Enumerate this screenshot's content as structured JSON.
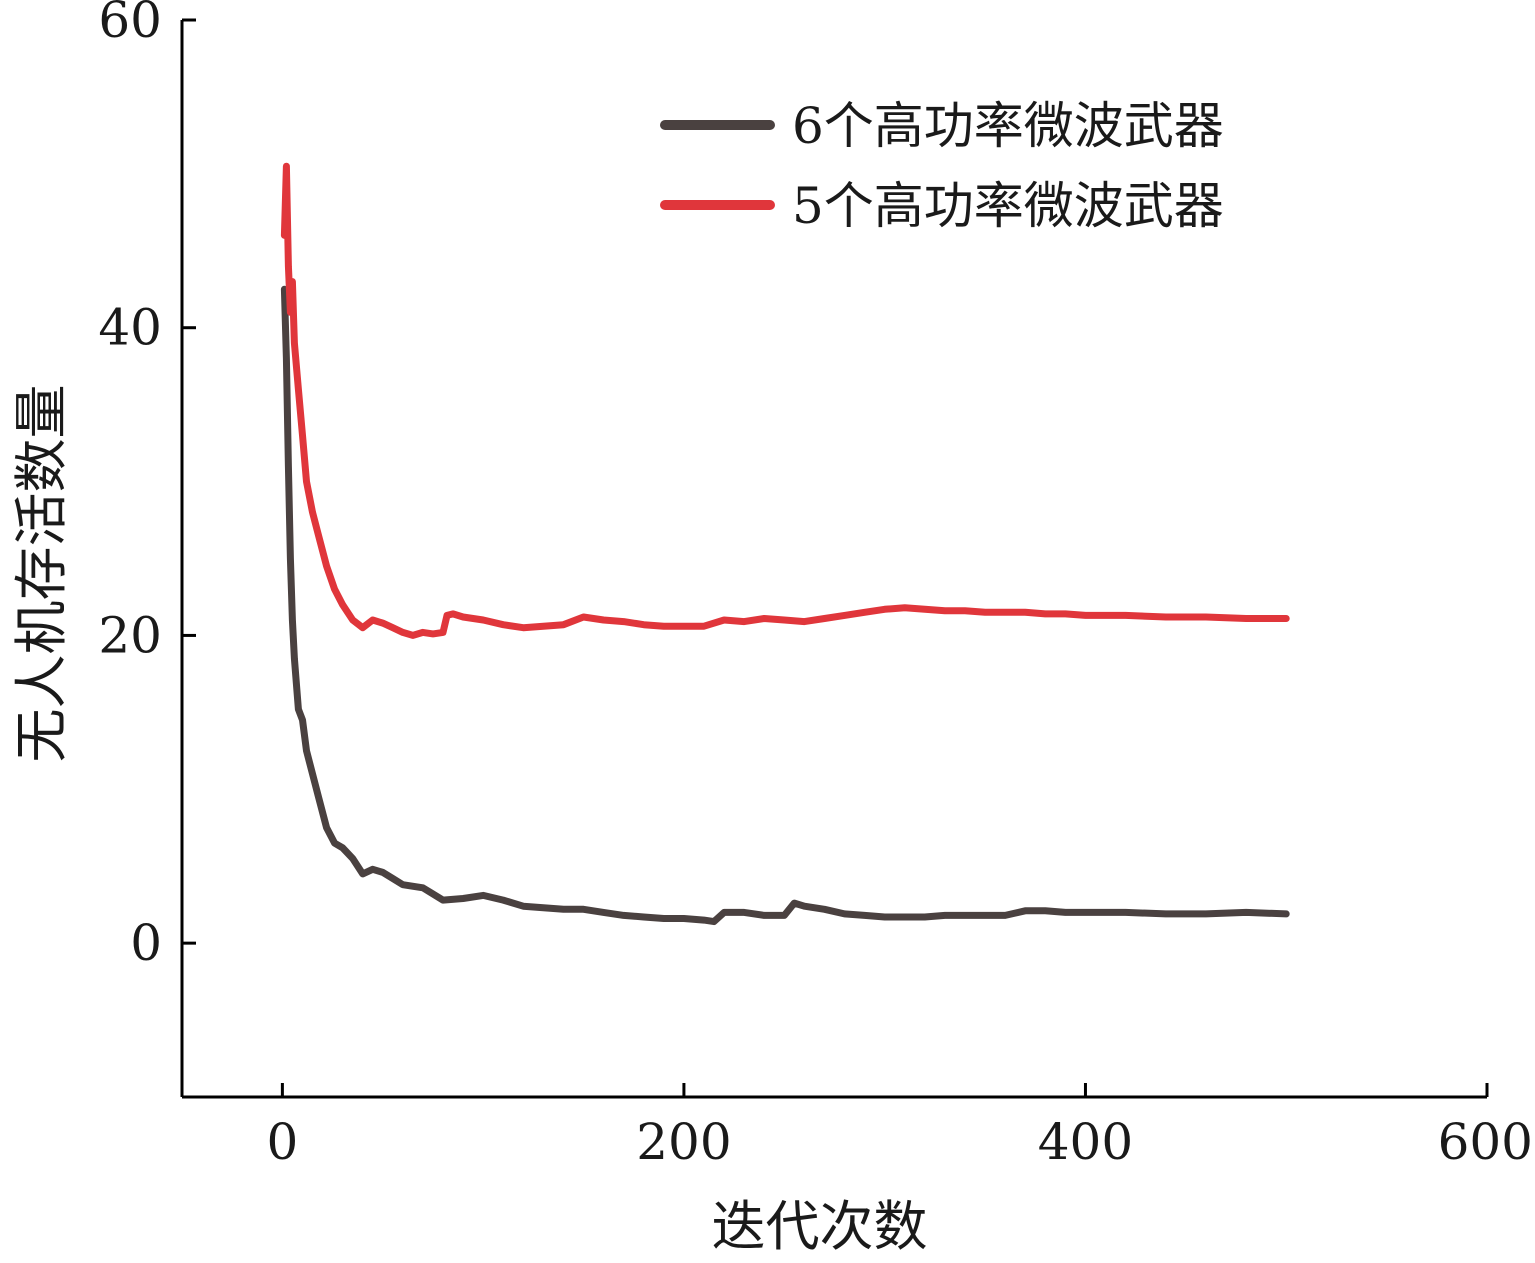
{
  "chart_data": {
    "type": "line",
    "title": "",
    "xlabel": "迭代次数",
    "ylabel": "无人机存活数量",
    "xlim": [
      -50,
      600
    ],
    "ylim": [
      -10,
      60
    ],
    "xticks": [
      0,
      200,
      400,
      600
    ],
    "yticks": [
      0,
      20,
      40,
      60
    ],
    "grid": false,
    "legend_position": "top-right",
    "series": [
      {
        "name": "6个高功率微波武器",
        "color": "#4a4140",
        "x": [
          1,
          2,
          3,
          4,
          5,
          6,
          8,
          10,
          12,
          15,
          18,
          22,
          26,
          30,
          35,
          40,
          45,
          50,
          55,
          60,
          70,
          80,
          90,
          100,
          110,
          120,
          130,
          140,
          150,
          160,
          170,
          180,
          190,
          200,
          210,
          215,
          220,
          230,
          240,
          250,
          255,
          260,
          270,
          280,
          290,
          300,
          310,
          320,
          330,
          340,
          350,
          360,
          370,
          380,
          390,
          400,
          420,
          440,
          460,
          480,
          500
        ],
        "y": [
          42.5,
          38,
          31,
          25,
          21,
          18.5,
          15.2,
          14.5,
          12.5,
          11,
          9.5,
          7.5,
          6.5,
          6.2,
          5.5,
          4.5,
          4.8,
          4.6,
          4.2,
          3.8,
          3.6,
          2.8,
          2.9,
          3.1,
          2.8,
          2.4,
          2.3,
          2.2,
          2.2,
          2.0,
          1.8,
          1.7,
          1.6,
          1.6,
          1.5,
          1.4,
          2.0,
          2.0,
          1.8,
          1.8,
          2.6,
          2.4,
          2.2,
          1.9,
          1.8,
          1.7,
          1.7,
          1.7,
          1.8,
          1.8,
          1.8,
          1.8,
          2.1,
          2.1,
          2.0,
          2.0,
          2.0,
          1.9,
          1.9,
          2.0,
          1.9
        ]
      },
      {
        "name": "5个高功率微波武器",
        "color": "#e0363b",
        "x": [
          1,
          2,
          3,
          4,
          5,
          6,
          8,
          10,
          12,
          15,
          18,
          22,
          26,
          30,
          35,
          40,
          45,
          50,
          55,
          60,
          65,
          70,
          75,
          80,
          82,
          85,
          90,
          100,
          110,
          120,
          130,
          140,
          150,
          160,
          170,
          180,
          190,
          200,
          210,
          220,
          230,
          240,
          250,
          260,
          270,
          280,
          290,
          300,
          310,
          320,
          330,
          340,
          350,
          360,
          370,
          380,
          390,
          400,
          420,
          440,
          460,
          480,
          500
        ],
        "y": [
          46,
          50.5,
          44,
          41,
          43,
          39,
          36,
          33,
          30,
          28,
          26.5,
          24.5,
          23,
          22,
          21,
          20.5,
          21,
          20.8,
          20.5,
          20.2,
          20.0,
          20.2,
          20.1,
          20.2,
          21.3,
          21.4,
          21.2,
          21.0,
          20.7,
          20.5,
          20.6,
          20.7,
          21.2,
          21.0,
          20.9,
          20.7,
          20.6,
          20.6,
          20.6,
          21.0,
          20.9,
          21.1,
          21.0,
          20.9,
          21.1,
          21.3,
          21.5,
          21.7,
          21.8,
          21.7,
          21.6,
          21.6,
          21.5,
          21.5,
          21.5,
          21.4,
          21.4,
          21.3,
          21.3,
          21.2,
          21.2,
          21.1,
          21.1
        ]
      }
    ]
  }
}
